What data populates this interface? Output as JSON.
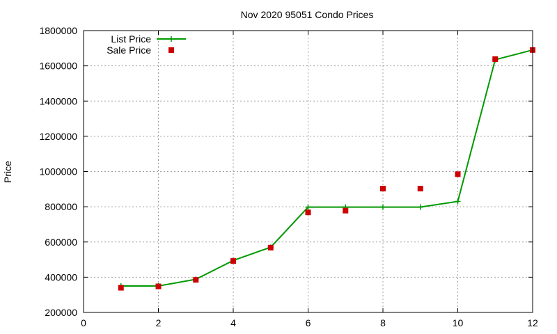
{
  "chart_data": {
    "type": "line",
    "title": "Nov 2020 95051 Condo Prices",
    "xlabel": "",
    "ylabel": "Price",
    "xlim": [
      0,
      12
    ],
    "ylim": [
      200000,
      1800000
    ],
    "xticks": [
      0,
      2,
      4,
      6,
      8,
      10,
      12
    ],
    "yticks": [
      200000,
      400000,
      600000,
      800000,
      1000000,
      1200000,
      1400000,
      1600000,
      1800000
    ],
    "grid": true,
    "legend_position": "top-left",
    "series": [
      {
        "name": "List Price",
        "style": "line+cross",
        "color": "#009900",
        "x": [
          1,
          2,
          3,
          4,
          5,
          6,
          7,
          8,
          9,
          10,
          11,
          12
        ],
        "values": [
          350000,
          350000,
          388000,
          495000,
          570000,
          798000,
          798000,
          798000,
          798000,
          830000,
          1635000,
          1690000
        ]
      },
      {
        "name": "Sale Price",
        "style": "points",
        "color": "#cc0000",
        "x": [
          1,
          2,
          3,
          4,
          5,
          6,
          7,
          8,
          9,
          10,
          11,
          12
        ],
        "values": [
          340000,
          348000,
          385000,
          492000,
          568000,
          768000,
          778000,
          903000,
          903000,
          985000,
          1638000,
          1690000
        ]
      }
    ]
  }
}
